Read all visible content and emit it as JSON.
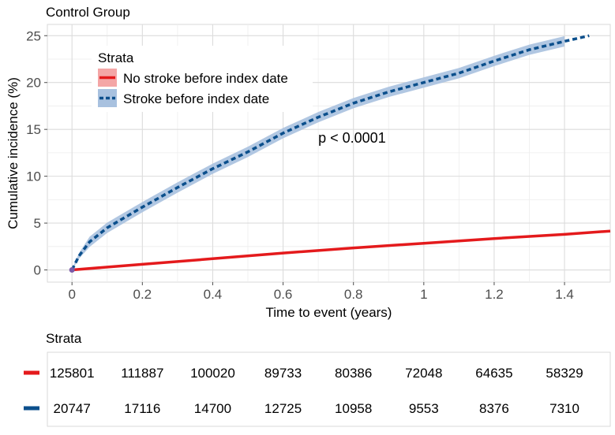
{
  "chart_data": [
    {
      "type": "line",
      "title": "Control Group",
      "xlabel": "Time to event (years)",
      "ylabel": "Cumulative incidence (%)",
      "xlim": [
        -0.07,
        1.53
      ],
      "ylim": [
        -1.3,
        26.2
      ],
      "x_ticks": [
        0,
        0.2,
        0.4,
        0.6,
        0.8,
        1,
        1.2,
        1.4
      ],
      "x_tick_labels": [
        "0",
        "0.2",
        "0.4",
        "0.6",
        "0.8",
        "1",
        "1.2",
        "1.4"
      ],
      "y_ticks": [
        0,
        5,
        10,
        15,
        20,
        25
      ],
      "y_tick_labels": [
        "0",
        "5",
        "10",
        "15",
        "20",
        "25"
      ],
      "grid": true,
      "legend": {
        "title": "Strata",
        "position": "top-left"
      },
      "annotation": {
        "text": "p < 0.0001",
        "x": 0.7,
        "y": 13.6
      },
      "series": [
        {
          "name": "No stroke before index date",
          "color": "#e41a1c",
          "fill": "#f4a6a6",
          "style": "solid",
          "x": [
            0,
            0.2,
            0.4,
            0.6,
            0.8,
            1.0,
            1.2,
            1.4,
            1.53
          ],
          "y": [
            0,
            0.6,
            1.2,
            1.8,
            2.35,
            2.85,
            3.35,
            3.8,
            4.15
          ]
        },
        {
          "name": "Stroke before index date",
          "color": "#0b4f8c",
          "fill": "#a8c1df",
          "style": "dashed",
          "ci_halfwidth": 0.55,
          "ci_end_x": 1.4,
          "x": [
            0,
            0.02,
            0.05,
            0.1,
            0.15,
            0.2,
            0.3,
            0.4,
            0.5,
            0.6,
            0.7,
            0.8,
            0.9,
            1.0,
            1.1,
            1.2,
            1.3,
            1.4,
            1.47
          ],
          "y": [
            0,
            1.5,
            3.0,
            4.5,
            5.6,
            6.7,
            8.8,
            10.8,
            12.6,
            14.6,
            16.3,
            17.8,
            19.0,
            20.0,
            21.0,
            22.3,
            23.5,
            24.4,
            25.0
          ]
        }
      ]
    },
    {
      "type": "table",
      "title": "Strata",
      "columns_x": [
        0,
        0.2,
        0.4,
        0.6,
        0.8,
        1,
        1.2,
        1.4
      ],
      "rows": [
        {
          "color": "#e41a1c",
          "values": [
            "125801",
            "111887",
            "100020",
            "89733",
            "80386",
            "72048",
            "64635",
            "58329"
          ]
        },
        {
          "color": "#0b4f8c",
          "values": [
            "20747",
            "17116",
            "14700",
            "12725",
            "10958",
            "9553",
            "8376",
            "7310"
          ]
        }
      ]
    }
  ]
}
